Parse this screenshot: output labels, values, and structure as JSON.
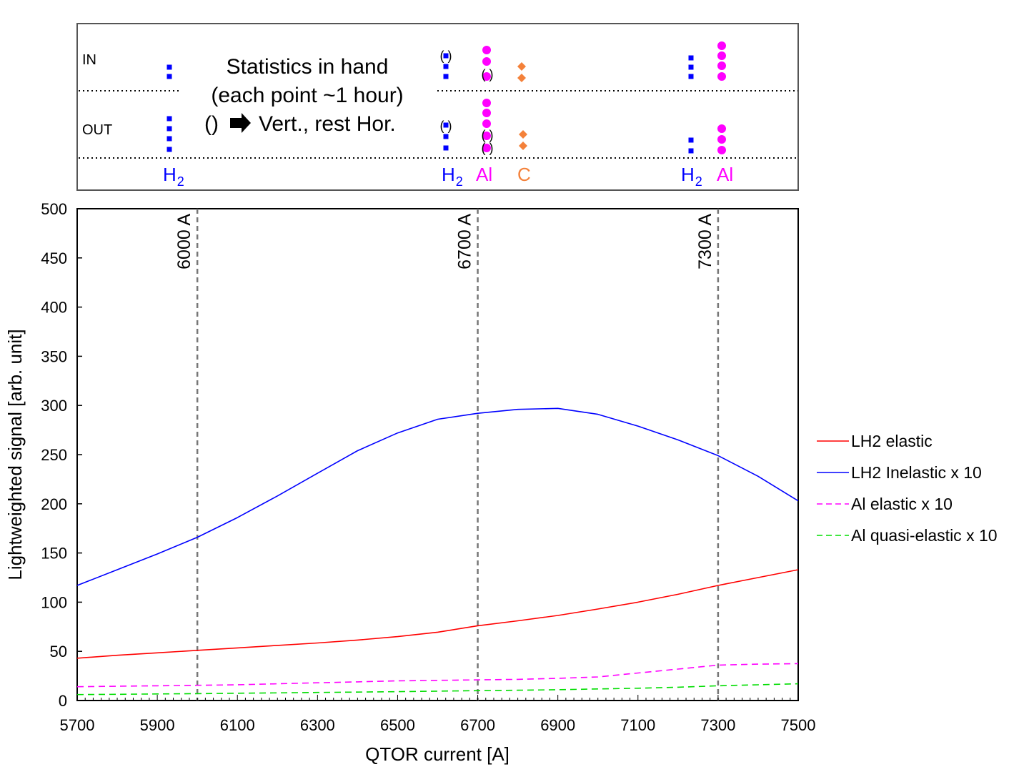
{
  "top_panel": {
    "in_label": "IN",
    "out_label": "OUT",
    "note_line1": "Statistics in hand",
    "note_line2": "(each point ~1 hour)",
    "note_line3_prefix": "()",
    "note_line3_suffix": "Vert., rest Hor.",
    "arrow_icon": "right-arrow-icon",
    "paren_mark": "( )",
    "group_labels": [
      {
        "name": "H",
        "sub": "2",
        "color": "#0000ff"
      },
      {
        "name": "H",
        "sub": "2",
        "color": "#0000ff"
      },
      {
        "name": "Al",
        "sub": "",
        "color": "#ff00ff"
      },
      {
        "name": "C",
        "sub": "",
        "color": "#f4813a"
      },
      {
        "name": "H",
        "sub": "2",
        "color": "#0000ff"
      },
      {
        "name": "Al",
        "sub": "",
        "color": "#ff00ff"
      }
    ],
    "colors": {
      "h2": "#0000ff",
      "al": "#ff00ff",
      "c": "#f4813a"
    }
  },
  "chart_data": {
    "type": "line",
    "xlabel": "QTOR current [A]",
    "ylabel": "Lightweighted signal [arb. unit]",
    "xlim": [
      5700,
      7500
    ],
    "ylim": [
      0,
      500
    ],
    "xticks": [
      5700,
      5900,
      6100,
      6300,
      6500,
      6700,
      6900,
      7100,
      7300,
      7500
    ],
    "yticks": [
      0,
      50,
      100,
      150,
      200,
      250,
      300,
      350,
      400,
      450,
      500
    ],
    "grid": false,
    "legend_position": "right",
    "vlines": [
      {
        "x": 6000,
        "label": "6000 A"
      },
      {
        "x": 6700,
        "label": "6700 A"
      },
      {
        "x": 7300,
        "label": "7300 A"
      }
    ],
    "series": [
      {
        "name": "LH2 elastic",
        "color": "#ff0000",
        "dash": "solid",
        "x": [
          5700,
          5800,
          5900,
          6000,
          6100,
          6200,
          6300,
          6400,
          6500,
          6600,
          6700,
          6800,
          6900,
          7000,
          7100,
          7200,
          7300,
          7400,
          7500
        ],
        "values": [
          43,
          46,
          48.5,
          51,
          53.5,
          56,
          58.5,
          61.5,
          65,
          69.5,
          76,
          81,
          86.5,
          93,
          100,
          108,
          117,
          125,
          133
        ]
      },
      {
        "name": "LH2 Inelastic x 10",
        "color": "#0000ff",
        "dash": "solid",
        "x": [
          5700,
          5800,
          5900,
          6000,
          6100,
          6200,
          6300,
          6400,
          6500,
          6600,
          6700,
          6800,
          6900,
          7000,
          7100,
          7200,
          7300,
          7400,
          7500
        ],
        "values": [
          117,
          133,
          149,
          166,
          186,
          208,
          231,
          254,
          272,
          286,
          292,
          296,
          297,
          291,
          279,
          265,
          249,
          228,
          203
        ]
      },
      {
        "name": "Al elastic x 10",
        "color": "#ff00ff",
        "dash": "dashed",
        "x": [
          5700,
          5800,
          5900,
          6000,
          6100,
          6200,
          6300,
          6400,
          6500,
          6600,
          6700,
          6800,
          6900,
          7000,
          7100,
          7200,
          7300,
          7400,
          7500
        ],
        "values": [
          14,
          14.5,
          15,
          15.5,
          16,
          17,
          18,
          19,
          20,
          20.5,
          21,
          21.5,
          22.5,
          24,
          28,
          32,
          36,
          37,
          37.5
        ]
      },
      {
        "name": "Al quasi-elastic x 10",
        "color": "#00dd00",
        "dash": "dashed",
        "x": [
          5700,
          5800,
          5900,
          6000,
          6100,
          6200,
          6300,
          6400,
          6500,
          6600,
          6700,
          6800,
          6900,
          7000,
          7100,
          7200,
          7300,
          7400,
          7500
        ],
        "values": [
          6,
          6.3,
          6.7,
          7,
          7.4,
          7.8,
          8.2,
          8.6,
          9,
          9.5,
          10,
          10.5,
          11,
          11.8,
          12.5,
          13.5,
          15,
          16,
          17
        ]
      }
    ]
  }
}
